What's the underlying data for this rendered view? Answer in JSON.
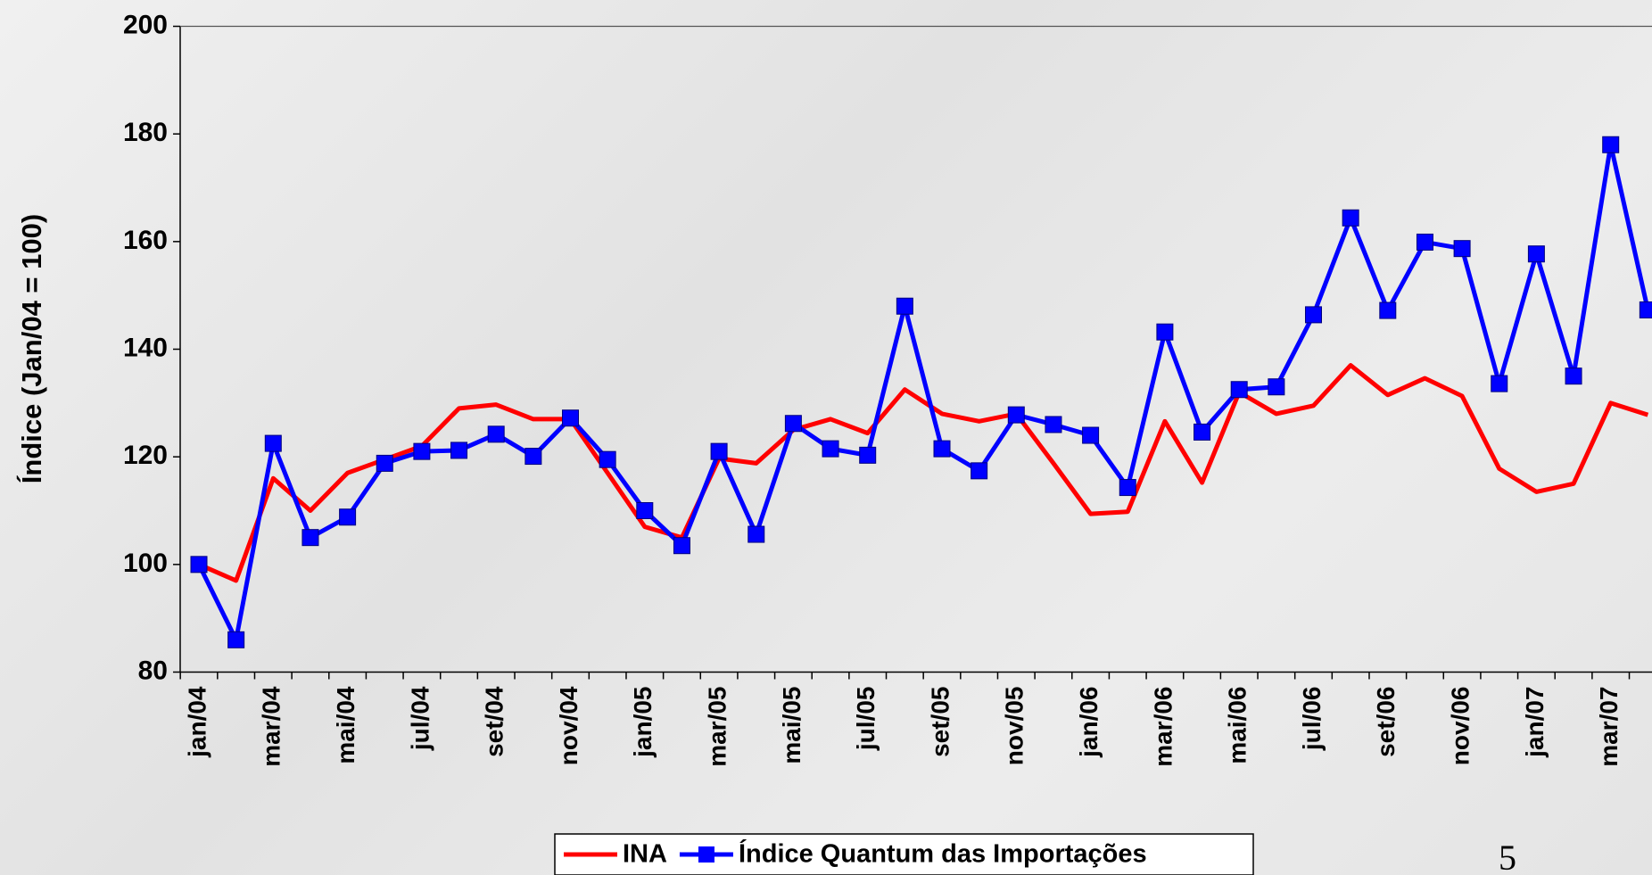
{
  "chart_data": {
    "type": "line",
    "y_label": "Índice (Jan/04 = 100)",
    "categories": [
      "jan/04",
      null,
      "mar/04",
      null,
      "mai/04",
      null,
      "jul/04",
      null,
      "set/04",
      null,
      "nov/04",
      null,
      "jan/05",
      null,
      "mar/05",
      null,
      "mai/05",
      null,
      "jul/05",
      null,
      "set/05",
      null,
      "nov/05",
      null,
      "jan/06",
      null,
      "mar/06",
      null,
      "mai/06",
      null,
      "jul/06",
      null,
      "set/06",
      null,
      "nov/06",
      null,
      "jan/07",
      null,
      "mar/07",
      null
    ],
    "series": [
      {
        "name": "INA",
        "color": "#ff0000",
        "marker": false,
        "values": [
          100,
          97,
          116,
          110,
          117,
          119.5,
          122,
          129,
          129.7,
          127,
          127,
          117,
          107,
          105,
          119.7,
          118.8,
          125,
          127,
          124.4,
          132.5,
          128,
          126.6,
          128,
          118.8,
          109.4,
          109.8,
          126.6,
          115.2,
          132,
          128,
          129.5,
          137,
          131.5,
          134.6,
          131.3,
          117.8,
          113.5,
          115,
          130,
          127.8
        ]
      },
      {
        "name": "Índice Quantum das Importações",
        "color": "#0000ff",
        "marker": true,
        "values": [
          100,
          86,
          122.5,
          105,
          108.8,
          118.8,
          121,
          121.2,
          124.2,
          120.1,
          127.2,
          119.5,
          110,
          103.5,
          121,
          105.6,
          126.2,
          121.5,
          120.3,
          148,
          121.5,
          117.4,
          127.8,
          126,
          124,
          114.3,
          143.2,
          124.6,
          132.5,
          133,
          146.4,
          164.4,
          147.2,
          159.9,
          158.7,
          133.6,
          157.7,
          135,
          178,
          147.3
        ]
      }
    ],
    "ylim": [
      80,
      200
    ],
    "yticks": [
      80,
      100,
      120,
      140,
      160,
      180,
      200
    ],
    "grid": false,
    "page_number": "5"
  }
}
